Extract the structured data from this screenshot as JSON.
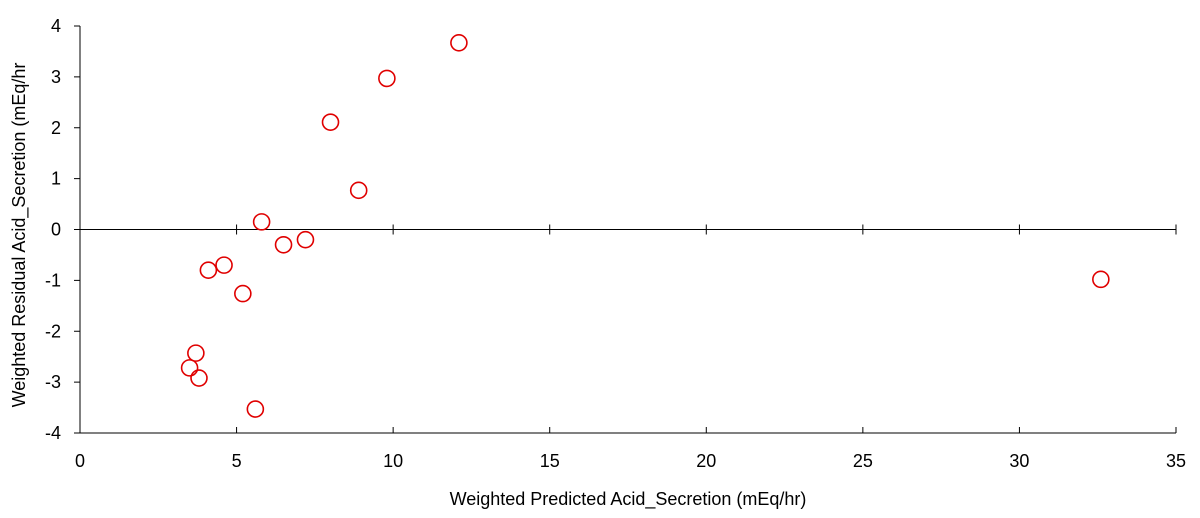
{
  "chart_data": {
    "type": "scatter",
    "title": "",
    "xlabel": "Weighted Predicted Acid_Secretion (mEq/hr)",
    "ylabel": "Weighted Residual Acid_Secretion (mEq/hr",
    "xlim": [
      0,
      35
    ],
    "ylim": [
      -4,
      4
    ],
    "xticks": [
      "0",
      "5",
      "10",
      "15",
      "20",
      "25",
      "30",
      "35"
    ],
    "yticks": [
      "-4",
      "-3",
      "-2",
      "-1",
      "0",
      "1",
      "2",
      "3",
      "4"
    ],
    "grid": false,
    "legend": "none",
    "marker": "open-circle",
    "marker_color": "#e00000",
    "points": [
      {
        "x": 12.1,
        "y": 3.67
      },
      {
        "x": 9.8,
        "y": 2.97
      },
      {
        "x": 8.0,
        "y": 2.11
      },
      {
        "x": 8.9,
        "y": 0.77
      },
      {
        "x": 5.8,
        "y": 0.15
      },
      {
        "x": 6.5,
        "y": -0.3
      },
      {
        "x": 7.2,
        "y": -0.2
      },
      {
        "x": 4.6,
        "y": -0.7
      },
      {
        "x": 4.1,
        "y": -0.8
      },
      {
        "x": 5.2,
        "y": -1.26
      },
      {
        "x": 3.7,
        "y": -2.43
      },
      {
        "x": 3.5,
        "y": -2.72
      },
      {
        "x": 3.8,
        "y": -2.92
      },
      {
        "x": 5.6,
        "y": -3.53
      },
      {
        "x": 32.6,
        "y": -0.98
      }
    ]
  }
}
